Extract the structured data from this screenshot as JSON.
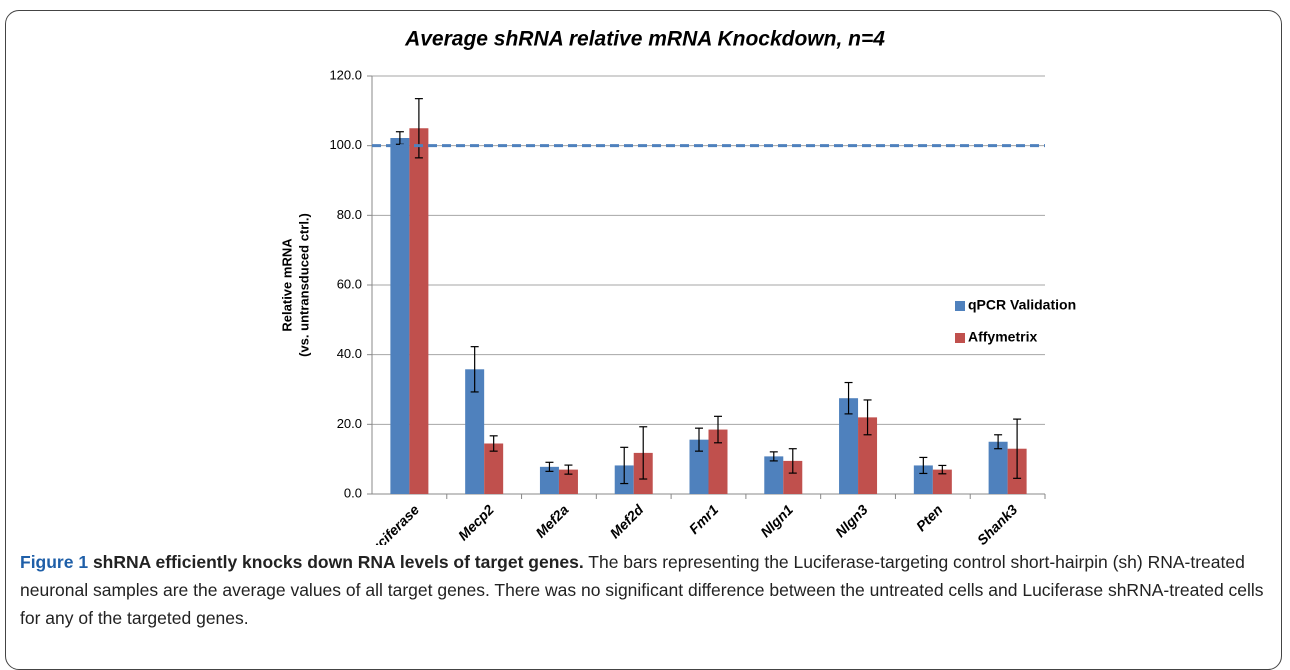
{
  "chart_data": {
    "type": "bar",
    "title": "Average shRNA relative mRNA Knockdown, n=4",
    "y_label": [
      "Relative mRNA",
      "(vs. untransduced ctrl.)"
    ],
    "categories": [
      "Luciferase",
      "Mecp2",
      "Mef2a",
      "Mef2d",
      "Fmr1",
      "Nlgn1",
      "Nlgn3",
      "Pten",
      "Shank3"
    ],
    "series": [
      {
        "name": "qPCR Validation",
        "color": "#4f81bd",
        "values": [
          102.2,
          35.8,
          7.8,
          8.2,
          15.6,
          10.8,
          27.5,
          8.2,
          15.0
        ],
        "errors": [
          1.8,
          6.5,
          1.3,
          5.2,
          3.3,
          1.3,
          4.5,
          2.3,
          2.0
        ]
      },
      {
        "name": "Affymetrix",
        "color": "#c0504d",
        "values": [
          105.0,
          14.5,
          7.0,
          11.8,
          18.5,
          9.5,
          22.0,
          7.0,
          13.0
        ],
        "errors": [
          8.5,
          2.2,
          1.3,
          7.5,
          3.8,
          3.5,
          5.0,
          1.2,
          8.5
        ]
      }
    ],
    "reference_line": {
      "value": 100,
      "color": "#4f81bd"
    },
    "ylim": [
      0,
      120
    ],
    "yticks": [
      {
        "value": 0,
        "label": "0.0"
      },
      {
        "value": 20,
        "label": "20.0"
      },
      {
        "value": 40,
        "label": "40.0"
      },
      {
        "value": 60,
        "label": "60.0"
      },
      {
        "value": 80,
        "label": "80.0"
      },
      {
        "value": 100,
        "label": "100.0"
      },
      {
        "value": 120,
        "label": "120.0"
      }
    ],
    "grid": true,
    "legend": "right"
  },
  "caption": {
    "label": "Figure 1",
    "heading": "shRNA efficiently knocks down RNA levels of target genes.",
    "text": "The bars representing the Luciferase-targeting control short-hairpin (sh) RNA-treated neuronal samples are the average values of all target genes. There was no significant difference between the untreated cells and Luciferase shRNA-treated cells for any of the targeted genes."
  }
}
